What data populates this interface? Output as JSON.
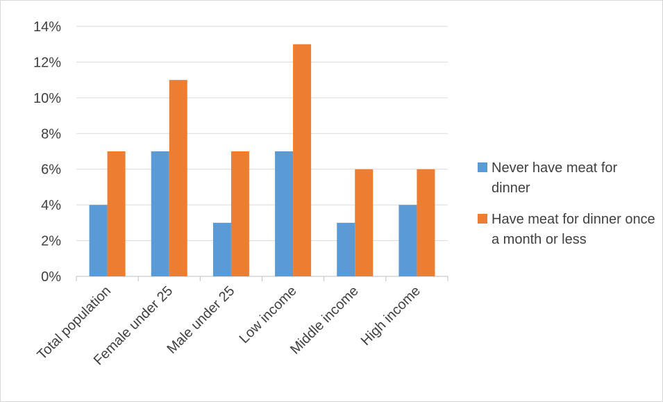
{
  "chart_data": {
    "type": "bar",
    "categories": [
      "Total population",
      "Female under 25",
      "Male under 25",
      "Low income",
      "Middle income",
      "High income"
    ],
    "series": [
      {
        "name": "Never have meat for dinner",
        "color": "#5b9bd5",
        "values": [
          4,
          7,
          3,
          7,
          3,
          4
        ]
      },
      {
        "name": "Have meat for dinner once a month or less",
        "color": "#ed7d31",
        "values": [
          7,
          11,
          7,
          13,
          6,
          6
        ]
      }
    ],
    "title": "",
    "xlabel": "",
    "ylabel": "",
    "ylim": [
      0,
      14
    ],
    "yticks": [
      0,
      2,
      4,
      6,
      8,
      10,
      12,
      14
    ],
    "ytick_format": "percent",
    "grid": true,
    "legend_position": "right"
  }
}
